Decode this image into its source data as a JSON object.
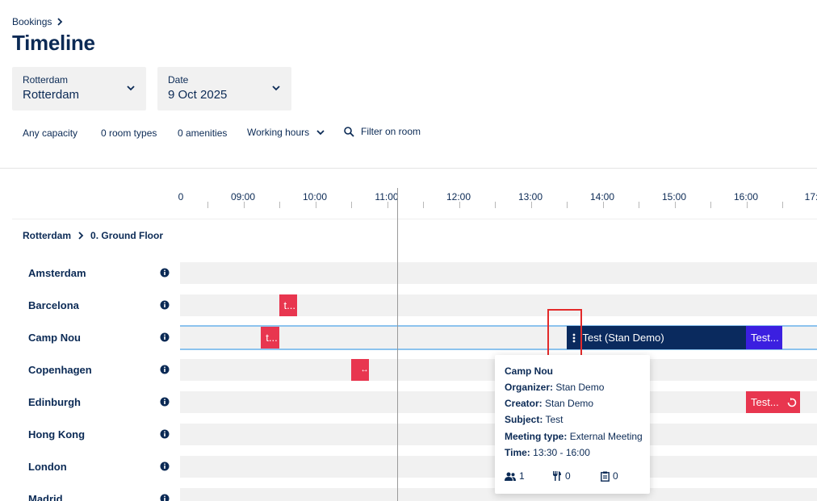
{
  "breadcrumb": {
    "label": "Bookings"
  },
  "page": {
    "title": "Timeline"
  },
  "location_select": {
    "label": "Rotterdam",
    "value": "Rotterdam"
  },
  "date_select": {
    "label": "Date",
    "value": "9 Oct 2025"
  },
  "filters": {
    "capacity": "Any capacity",
    "room_types": "0 room types",
    "amenities": "0 amenities",
    "hours": "Working hours",
    "room_filter": "Filter on room"
  },
  "timeline": {
    "hours": [
      "0",
      "09:00",
      "10:00",
      "11:00",
      "12:00",
      "13:00",
      "14:00",
      "15:00",
      "16:00",
      "17:"
    ],
    "now_time": "11:10"
  },
  "floor": {
    "building": "Rotterdam",
    "floor": "0. Ground Floor"
  },
  "rooms": [
    {
      "name": "Amsterdam"
    },
    {
      "name": "Barcelona"
    },
    {
      "name": "Camp Nou"
    },
    {
      "name": "Copenhagen"
    },
    {
      "name": "Edinburgh"
    },
    {
      "name": "Hong Kong"
    },
    {
      "name": "London"
    },
    {
      "name": "Madrid"
    }
  ],
  "bookings": [
    {
      "room": "Barcelona",
      "label": "t...",
      "start": "09:30",
      "end": "09:45",
      "color": "#e8364f"
    },
    {
      "room": "Camp Nou",
      "label": "t...",
      "start": "09:15",
      "end": "09:30",
      "color": "#e8364f"
    },
    {
      "room": "Camp Nou",
      "label": "Test (Stan Demo)",
      "start": "13:30",
      "end": "16:00",
      "color": "#0a2a5e"
    },
    {
      "room": "Camp Nou",
      "label": "Test...",
      "start": "16:00",
      "end": "16:30",
      "color": "#3b1fe0"
    },
    {
      "room": "Copenhagen",
      "label": "",
      "start": "10:30",
      "end": "10:45",
      "color": "#e8364f"
    },
    {
      "room": "Edinburgh",
      "label": "Test...",
      "start": "16:00",
      "end": "16:45",
      "color": "#e8364f"
    }
  ],
  "tooltip": {
    "room": "Camp Nou",
    "organizer_label": "Organizer:",
    "organizer": "Stan Demo",
    "creator_label": "Creator:",
    "creator": "Stan Demo",
    "subject_label": "Subject:",
    "subject": "Test",
    "meeting_type_label": "Meeting type:",
    "meeting_type": "External Meeting",
    "time_label": "Time:",
    "time": "13:30 - 16:00",
    "attendees": "1",
    "catering": "0",
    "services": "0"
  },
  "colors": {
    "primary": "#0b2a55",
    "booking_red": "#e8364f",
    "booking_navy": "#0a2a5e",
    "booking_blue": "#3b1fe0",
    "selection": "#8cc3ee",
    "highlight": "#e32a2a"
  }
}
